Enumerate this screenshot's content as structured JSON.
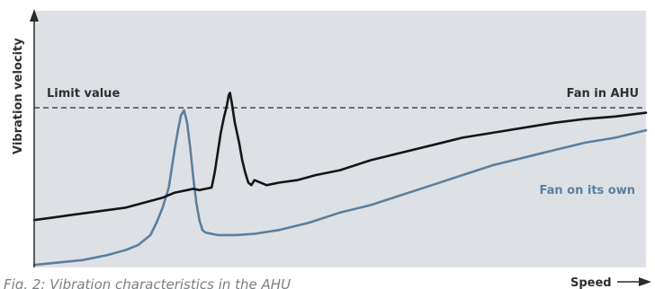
{
  "chart_data": {
    "type": "line",
    "title": "",
    "caption": "Fig. 2: Vibration characteristics in the AHU",
    "xlabel": "Speed",
    "ylabel": "Vibration velocity",
    "xlim": [
      0,
      100
    ],
    "ylim": [
      0,
      100
    ],
    "grid": false,
    "legend": "inline",
    "colors": {
      "background": "#dde1e6",
      "fan_in_ahu": "#151515",
      "fan_on_own": "#5c7f9d",
      "limit": "#3a3a3a",
      "axis": "#2b2b2b",
      "label_blue": "#5c7f9d",
      "label_dark": "#2f2f2f"
    },
    "limit_line": {
      "label": "Limit value",
      "y": 64
    },
    "series": [
      {
        "name": "Fan in AHU",
        "points": [
          [
            0,
            19
          ],
          [
            3,
            20
          ],
          [
            6,
            21
          ],
          [
            9,
            22
          ],
          [
            12,
            23
          ],
          [
            15,
            24
          ],
          [
            18,
            26
          ],
          [
            21,
            28
          ],
          [
            23,
            30
          ],
          [
            25,
            31
          ],
          [
            26,
            31.5
          ],
          [
            27,
            31
          ],
          [
            28,
            31.5
          ],
          [
            29,
            32
          ],
          [
            29.5,
            38
          ],
          [
            30,
            46
          ],
          [
            30.5,
            54
          ],
          [
            31,
            60
          ],
          [
            31.5,
            65
          ],
          [
            31.8,
            69
          ],
          [
            32,
            70
          ],
          [
            32.3,
            66
          ],
          [
            32.8,
            58
          ],
          [
            33.5,
            50
          ],
          [
            34,
            43
          ],
          [
            34.5,
            38
          ],
          [
            35,
            34
          ],
          [
            35.5,
            33
          ],
          [
            36,
            35
          ],
          [
            38,
            33
          ],
          [
            40,
            34
          ],
          [
            43,
            35
          ],
          [
            46,
            37
          ],
          [
            50,
            39
          ],
          [
            55,
            43
          ],
          [
            60,
            46
          ],
          [
            65,
            49
          ],
          [
            70,
            52
          ],
          [
            75,
            54
          ],
          [
            80,
            56
          ],
          [
            85,
            58
          ],
          [
            90,
            59.5
          ],
          [
            95,
            60.5
          ],
          [
            100,
            62
          ]
        ]
      },
      {
        "name": "Fan on its own",
        "points": [
          [
            0,
            1
          ],
          [
            4,
            2
          ],
          [
            8,
            3
          ],
          [
            12,
            5
          ],
          [
            15,
            7
          ],
          [
            17,
            9
          ],
          [
            19,
            13
          ],
          [
            20,
            18
          ],
          [
            21,
            24
          ],
          [
            22,
            32
          ],
          [
            22.5,
            40
          ],
          [
            23,
            48
          ],
          [
            23.5,
            55
          ],
          [
            24,
            61
          ],
          [
            24.5,
            63
          ],
          [
            25,
            58
          ],
          [
            25.5,
            48
          ],
          [
            26,
            36
          ],
          [
            26.5,
            26
          ],
          [
            27,
            19
          ],
          [
            27.5,
            15
          ],
          [
            28,
            14
          ],
          [
            30,
            13
          ],
          [
            33,
            13
          ],
          [
            36,
            13.5
          ],
          [
            40,
            15
          ],
          [
            45,
            18
          ],
          [
            50,
            22
          ],
          [
            55,
            25
          ],
          [
            60,
            29
          ],
          [
            65,
            33
          ],
          [
            70,
            37
          ],
          [
            75,
            41
          ],
          [
            80,
            44
          ],
          [
            85,
            47
          ],
          [
            90,
            50
          ],
          [
            95,
            52
          ],
          [
            100,
            55
          ]
        ]
      }
    ]
  }
}
